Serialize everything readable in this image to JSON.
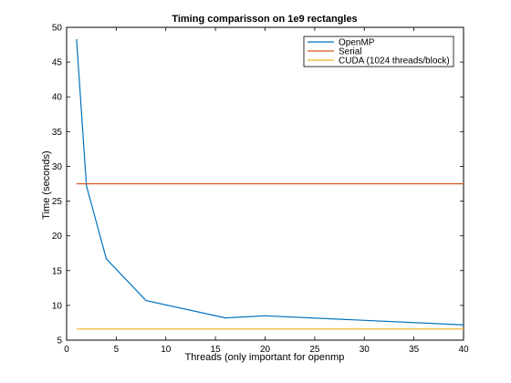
{
  "chart_data": {
    "type": "line",
    "title": "Timing comparisson on 1e9 rectangles",
    "xlabel": "Threads (only important for openmp",
    "ylabel": "Time (seconds)",
    "xlim": [
      0,
      40
    ],
    "ylim": [
      5,
      50
    ],
    "xticks": [
      0,
      5,
      10,
      15,
      20,
      25,
      30,
      35,
      40
    ],
    "yticks": [
      5,
      10,
      15,
      20,
      25,
      30,
      35,
      40,
      45,
      50
    ],
    "grid": false,
    "legend_position": "top-right",
    "series": [
      {
        "name": "OpenMP",
        "color": "#0072bd",
        "x": [
          1,
          2,
          4,
          8,
          16,
          20,
          40
        ],
        "y": [
          48.3,
          27.2,
          16.7,
          10.7,
          8.2,
          8.5,
          7.2
        ]
      },
      {
        "name": "Serial",
        "color": "#d95319",
        "x": [
          1,
          40
        ],
        "y": [
          27.5,
          27.5
        ]
      },
      {
        "name": "CUDA (1024 threads/block)",
        "color": "#edb120",
        "x": [
          1,
          40
        ],
        "y": [
          6.6,
          6.6
        ]
      }
    ]
  }
}
